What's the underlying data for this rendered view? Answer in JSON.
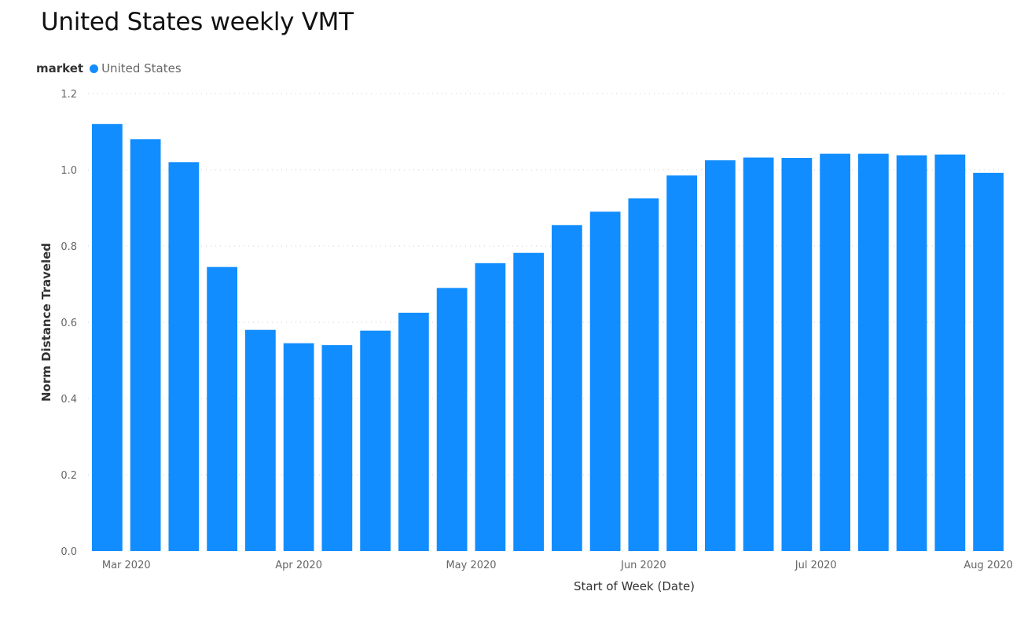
{
  "chart_data": {
    "type": "bar",
    "title": "United States weekly VMT",
    "legend_title": "market",
    "legend_position": "top-left",
    "series": [
      {
        "name": "United States",
        "color": "#118DFF",
        "values": [
          1.12,
          1.08,
          1.02,
          0.745,
          0.58,
          0.545,
          0.54,
          0.578,
          0.625,
          0.69,
          0.755,
          0.782,
          0.855,
          0.89,
          0.925,
          0.985,
          1.025,
          1.032,
          1.031,
          1.042,
          1.042,
          1.038,
          1.04,
          0.992
        ]
      }
    ],
    "x_tick_labels": [
      {
        "label": "Mar 2020",
        "bar_index": 0.5
      },
      {
        "label": "Apr 2020",
        "bar_index": 5
      },
      {
        "label": "May 2020",
        "bar_index": 9.5
      },
      {
        "label": "Jun 2020",
        "bar_index": 14
      },
      {
        "label": "Jul 2020",
        "bar_index": 18.5
      },
      {
        "label": "Aug 2020",
        "bar_index": 23
      }
    ],
    "xlabel": "Start of Week (Date)",
    "ylabel": "Norm Distance Traveled",
    "ylim": [
      0,
      1.2
    ],
    "y_ticks": [
      "0.0",
      "0.2",
      "0.4",
      "0.6",
      "0.8",
      "1.0",
      "1.2"
    ],
    "grid": true
  }
}
